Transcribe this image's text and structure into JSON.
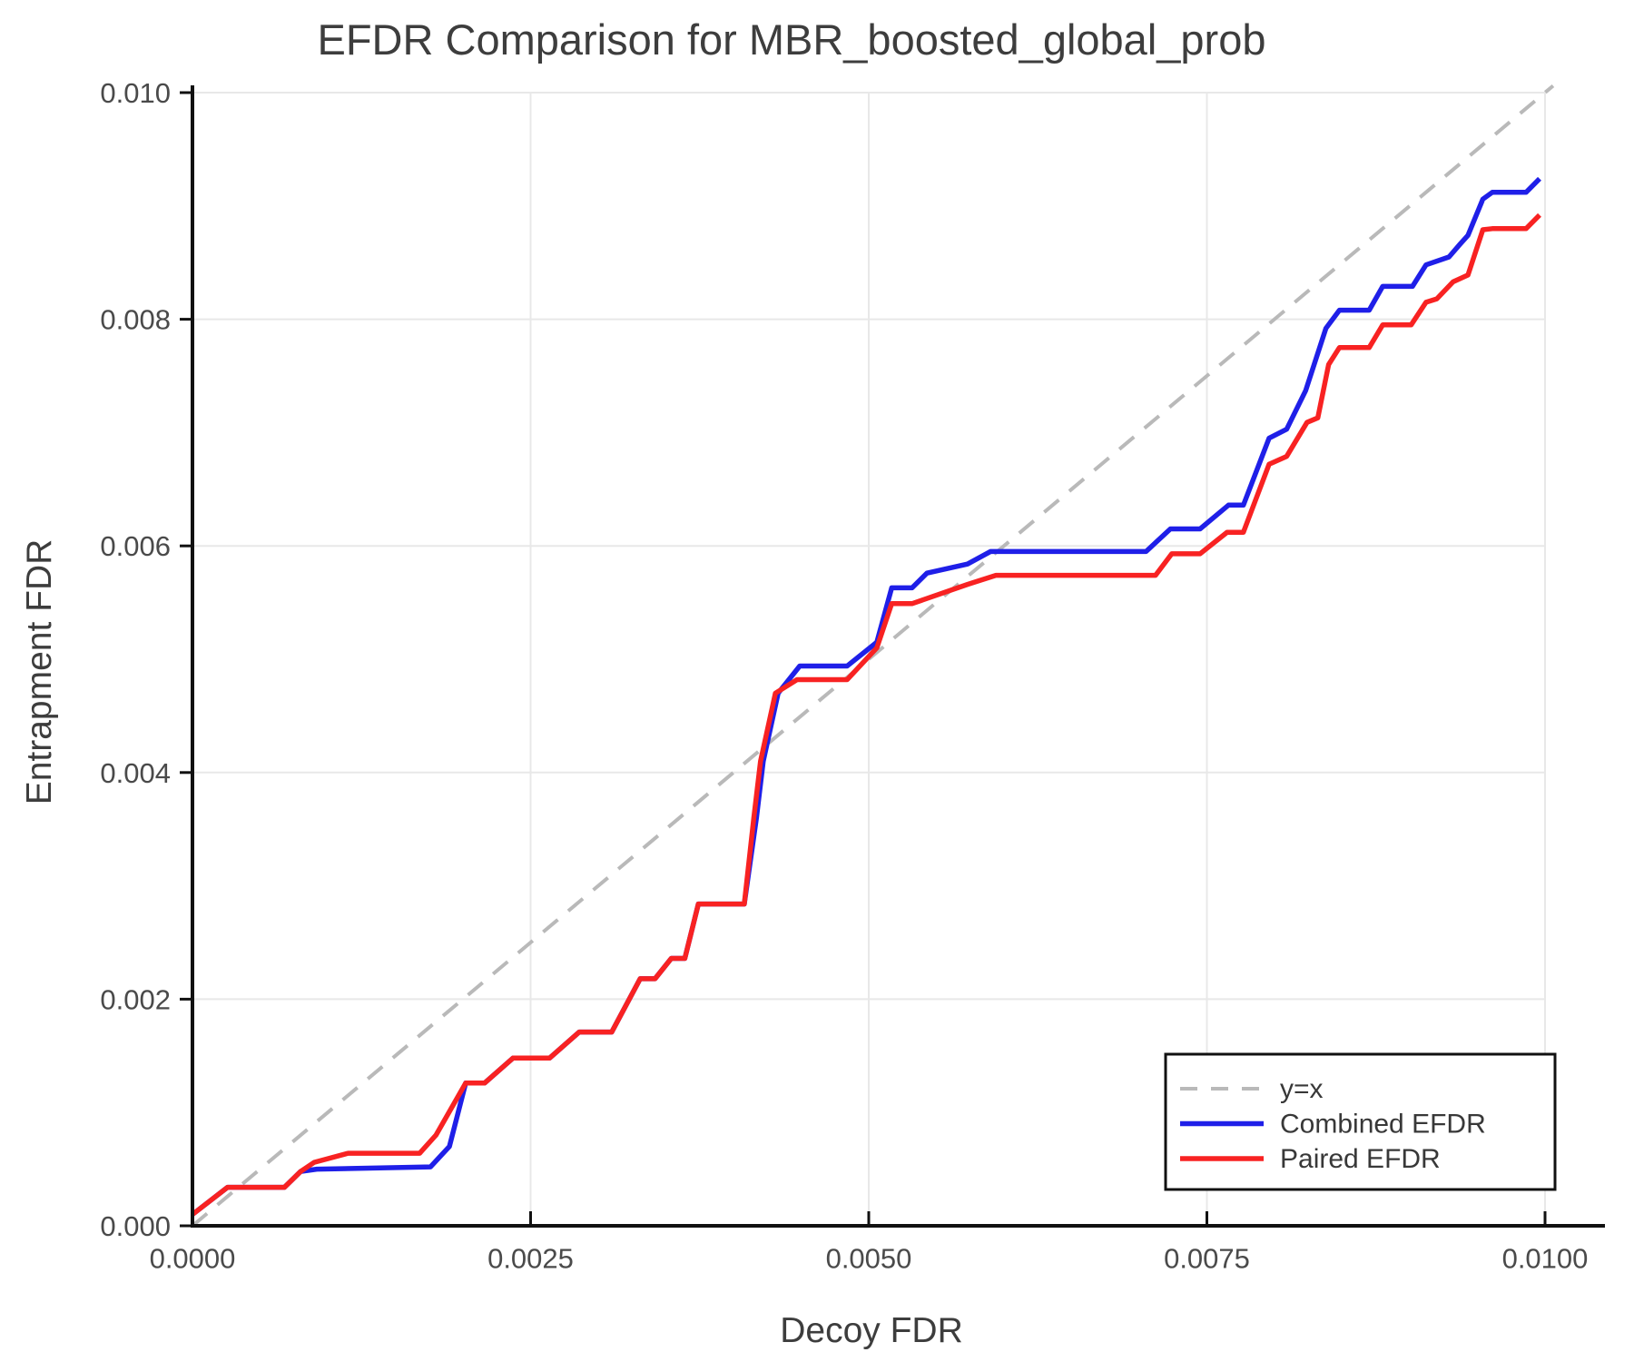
{
  "title": "EFDR Comparison for MBR_boosted_global_prob",
  "colors": {
    "combined": "#1f1fe8",
    "paired": "#f82222",
    "identity": "#b9b9b9",
    "grid": "#e8e8e8",
    "axis": "#111111",
    "title_text": "#3d3d3d",
    "tick_text": "#4a4a4a",
    "background": "#ffffff",
    "legend_border": "#111111"
  },
  "legend": {
    "position": "lower right",
    "entries": [
      "y=x",
      "Combined EFDR",
      "Paired EFDR"
    ]
  },
  "chart_data": {
    "type": "line",
    "title": "EFDR Comparison for MBR_boosted_global_prob",
    "xlabel": "Decoy FDR",
    "ylabel": "Entrapment FDR",
    "xlim": [
      0.0,
      0.01
    ],
    "ylim": [
      0.0,
      0.01
    ],
    "grid": true,
    "legend_position": "lower right",
    "x_ticks": [
      0.0,
      0.0025,
      0.005,
      0.0075,
      0.01
    ],
    "x_tick_labels": [
      "0.0000",
      "0.0025",
      "0.0050",
      "0.0075",
      "0.0100"
    ],
    "y_ticks": [
      0.0,
      0.002,
      0.004,
      0.006,
      0.008,
      0.01
    ],
    "y_tick_labels": [
      "0.000",
      "0.002",
      "0.004",
      "0.006",
      "0.008",
      "0.010"
    ],
    "series": [
      {
        "name": "y=x",
        "style": "dashed",
        "color": "#b9b9b9",
        "points": [
          [
            0.0,
            0.0
          ],
          [
            0.01006,
            0.01006
          ]
        ]
      },
      {
        "name": "Combined EFDR",
        "style": "solid",
        "color": "#1f1fe8",
        "points": [
          [
            0.0,
            0.0001
          ],
          [
            0.00026,
            0.00034
          ],
          [
            0.00068,
            0.00034
          ],
          [
            0.0008,
            0.00048
          ],
          [
            0.00092,
            0.0005
          ],
          [
            0.00176,
            0.00052
          ],
          [
            0.0019,
            0.0007
          ],
          [
            0.00202,
            0.00126
          ],
          [
            0.00216,
            0.00126
          ],
          [
            0.00237,
            0.00148
          ],
          [
            0.00264,
            0.00148
          ],
          [
            0.00286,
            0.00171
          ],
          [
            0.0031,
            0.00171
          ],
          [
            0.00331,
            0.00218
          ],
          [
            0.00342,
            0.00218
          ],
          [
            0.00354,
            0.00236
          ],
          [
            0.00364,
            0.00236
          ],
          [
            0.00374,
            0.00284
          ],
          [
            0.00408,
            0.00284
          ],
          [
            0.00417,
            0.0036
          ],
          [
            0.00422,
            0.0041
          ],
          [
            0.00433,
            0.0047
          ],
          [
            0.00449,
            0.00494
          ],
          [
            0.00484,
            0.00494
          ],
          [
            0.00506,
            0.00515
          ],
          [
            0.00517,
            0.00563
          ],
          [
            0.00532,
            0.00563
          ],
          [
            0.00543,
            0.00576
          ],
          [
            0.00573,
            0.00584
          ],
          [
            0.0059,
            0.00595
          ],
          [
            0.00705,
            0.00595
          ],
          [
            0.00723,
            0.00615
          ],
          [
            0.00745,
            0.00615
          ],
          [
            0.00766,
            0.00636
          ],
          [
            0.00777,
            0.00636
          ],
          [
            0.00796,
            0.00695
          ],
          [
            0.00809,
            0.00703
          ],
          [
            0.00823,
            0.00737
          ],
          [
            0.00838,
            0.00792
          ],
          [
            0.00848,
            0.00808
          ],
          [
            0.0087,
            0.00808
          ],
          [
            0.0088,
            0.00829
          ],
          [
            0.00902,
            0.00829
          ],
          [
            0.00912,
            0.00848
          ],
          [
            0.00929,
            0.00855
          ],
          [
            0.00937,
            0.00866
          ],
          [
            0.00943,
            0.00874
          ],
          [
            0.00954,
            0.00906
          ],
          [
            0.00961,
            0.00912
          ],
          [
            0.00986,
            0.00912
          ],
          [
            0.00996,
            0.00924
          ]
        ]
      },
      {
        "name": "Paired EFDR",
        "style": "solid",
        "color": "#f82222",
        "points": [
          [
            0.0,
            0.0001
          ],
          [
            0.00026,
            0.00034
          ],
          [
            0.00068,
            0.00034
          ],
          [
            0.0008,
            0.00048
          ],
          [
            0.0009,
            0.00056
          ],
          [
            0.00115,
            0.00064
          ],
          [
            0.00168,
            0.00064
          ],
          [
            0.0018,
            0.0008
          ],
          [
            0.00202,
            0.00126
          ],
          [
            0.00216,
            0.00126
          ],
          [
            0.00237,
            0.00148
          ],
          [
            0.00264,
            0.00148
          ],
          [
            0.00286,
            0.00171
          ],
          [
            0.0031,
            0.00171
          ],
          [
            0.00331,
            0.00218
          ],
          [
            0.00342,
            0.00218
          ],
          [
            0.00354,
            0.00236
          ],
          [
            0.00364,
            0.00236
          ],
          [
            0.00374,
            0.00284
          ],
          [
            0.00408,
            0.00284
          ],
          [
            0.00415,
            0.0036
          ],
          [
            0.0042,
            0.0041
          ],
          [
            0.00431,
            0.0047
          ],
          [
            0.00447,
            0.00482
          ],
          [
            0.00484,
            0.00482
          ],
          [
            0.00506,
            0.0051
          ],
          [
            0.00517,
            0.00549
          ],
          [
            0.00532,
            0.00549
          ],
          [
            0.00573,
            0.00566
          ],
          [
            0.00594,
            0.00574
          ],
          [
            0.00712,
            0.00574
          ],
          [
            0.00724,
            0.00593
          ],
          [
            0.00745,
            0.00593
          ],
          [
            0.00765,
            0.00612
          ],
          [
            0.00777,
            0.00612
          ],
          [
            0.00796,
            0.00672
          ],
          [
            0.00809,
            0.00679
          ],
          [
            0.00824,
            0.00709
          ],
          [
            0.00832,
            0.00713
          ],
          [
            0.0084,
            0.0076
          ],
          [
            0.00848,
            0.00775
          ],
          [
            0.0087,
            0.00775
          ],
          [
            0.0088,
            0.00795
          ],
          [
            0.00901,
            0.00795
          ],
          [
            0.00912,
            0.00815
          ],
          [
            0.0092,
            0.00818
          ],
          [
            0.00932,
            0.00833
          ],
          [
            0.00943,
            0.00839
          ],
          [
            0.00954,
            0.00879
          ],
          [
            0.00961,
            0.0088
          ],
          [
            0.00986,
            0.0088
          ],
          [
            0.00996,
            0.00892
          ]
        ]
      }
    ]
  }
}
